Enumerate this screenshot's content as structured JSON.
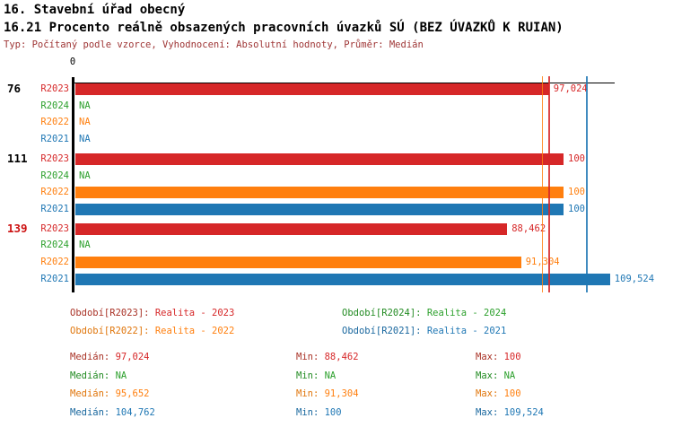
{
  "header": {
    "title": "16. Stavební úřad obecný",
    "subtitle": "16.21 Procento reálně obsazených pracovních úvazků SÚ (BEZ ÚVAZKŮ K RUIAN)",
    "meta": "Typ: Počítaný podle vzorce, Vyhodnocení: Absolutní hodnoty, Průměr: Medián"
  },
  "colors": {
    "axis": "#000000",
    "meta_text": "#9e3434",
    "row_number_default": "#000000",
    "row_number_alert": "#cc1111"
  },
  "series": {
    "R2023": {
      "label": "R2023",
      "color": "#d62728",
      "dark_color": "#a93226"
    },
    "R2024": {
      "label": "R2024",
      "color": "#2ca02c",
      "dark_color": "#228b22"
    },
    "R2022": {
      "label": "R2022",
      "color": "#ff7f0e",
      "dark_color": "#e0760c"
    },
    "R2021": {
      "label": "R2021",
      "color": "#1f77b4",
      "dark_color": "#19679e"
    }
  },
  "chart_data": {
    "type": "bar",
    "orientation": "horizontal",
    "value_axis": {
      "zero_label": "0",
      "min": 0,
      "implied_max": 110.5,
      "grid": false
    },
    "row_order": [
      "R2023",
      "R2024",
      "R2022",
      "R2021"
    ],
    "groups": [
      {
        "row_number": "76",
        "row_number_color": "#000000",
        "bars": [
          {
            "series": "R2023",
            "value": 97.024,
            "display": "97,024"
          },
          {
            "series": "R2024",
            "value": null,
            "display": "NA"
          },
          {
            "series": "R2022",
            "value": null,
            "display": "NA"
          },
          {
            "series": "R2021",
            "value": null,
            "display": "NA"
          }
        ]
      },
      {
        "row_number": "111",
        "row_number_color": "#000000",
        "bars": [
          {
            "series": "R2023",
            "value": 100,
            "display": "100"
          },
          {
            "series": "R2024",
            "value": null,
            "display": "NA"
          },
          {
            "series": "R2022",
            "value": 100,
            "display": "100"
          },
          {
            "series": "R2021",
            "value": 100,
            "display": "100"
          }
        ]
      },
      {
        "row_number": "139",
        "row_number_color": "#cc1111",
        "bars": [
          {
            "series": "R2023",
            "value": 88.462,
            "display": "88,462"
          },
          {
            "series": "R2024",
            "value": null,
            "display": "NA"
          },
          {
            "series": "R2022",
            "value": 91.304,
            "display": "91,304"
          },
          {
            "series": "R2021",
            "value": 109.524,
            "display": "109,524"
          }
        ]
      }
    ],
    "median_lines": [
      {
        "series": "R2023",
        "value": 97.024
      },
      {
        "series": "R2022",
        "value": 95.652
      },
      {
        "series": "R2021",
        "value": 104.762
      }
    ]
  },
  "legend": {
    "rows": [
      [
        {
          "series": "R2023",
          "label": "Období[R2023]:",
          "value": "Realita - 2023"
        },
        {
          "series": "R2024",
          "label": "Období[R2024]:",
          "value": "Realita - 2024"
        }
      ],
      [
        {
          "series": "R2022",
          "label": "Období[R2022]:",
          "value": "Realita - 2022"
        },
        {
          "series": "R2021",
          "label": "Období[R2021]:",
          "value": "Realita - 2021"
        }
      ]
    ]
  },
  "stats": {
    "label_median": "Medián:",
    "label_min": "Min:",
    "label_max": "Max:",
    "rows": [
      {
        "series": "R2023",
        "median": "97,024",
        "min": "88,462",
        "max": "100"
      },
      {
        "series": "R2024",
        "median": "NA",
        "min": "NA",
        "max": "NA"
      },
      {
        "series": "R2022",
        "median": "95,652",
        "min": "91,304",
        "max": "100"
      },
      {
        "series": "R2021",
        "median": "104,762",
        "min": "100",
        "max": "109,524"
      }
    ]
  }
}
